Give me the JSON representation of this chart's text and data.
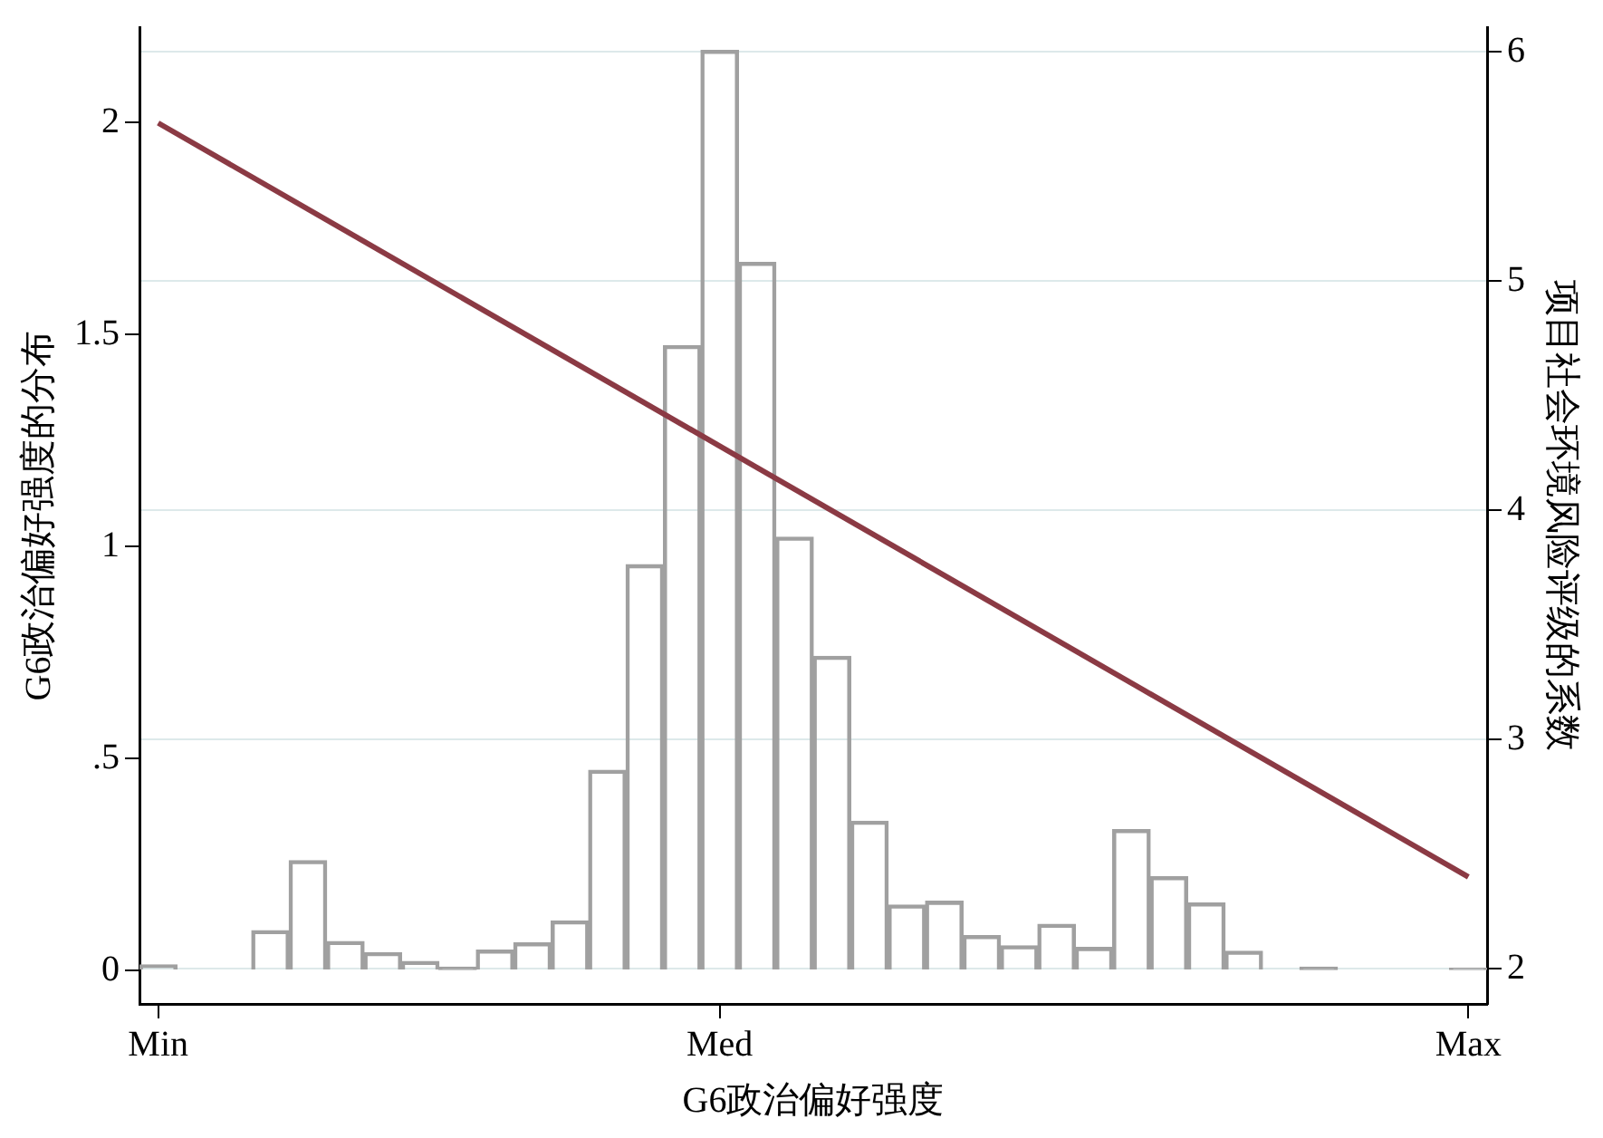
{
  "chart_data": {
    "type": "bar",
    "xlabel": "G6政治偏好强度",
    "ylabel": "G6政治偏好强度的分布",
    "y2label": "项目社会环境风险评级的系数",
    "categories": [
      "Min",
      null,
      null,
      null,
      null,
      null,
      null,
      null,
      null,
      null,
      null,
      null,
      null,
      null,
      null,
      "Med",
      null,
      null,
      null,
      null,
      null,
      null,
      null,
      null,
      null,
      null,
      null,
      null,
      null,
      null,
      null,
      null,
      null,
      null,
      null,
      "Max"
    ],
    "values": [
      0.013,
      null,
      null,
      0.094,
      0.259,
      0.068,
      0.042,
      0.021,
      0.008,
      0.048,
      0.065,
      0.117,
      0.472,
      0.957,
      1.474,
      2.17,
      1.67,
      1.022,
      0.741,
      0.352,
      0.154,
      0.163,
      0.082,
      0.058,
      0.109,
      0.054,
      0.332,
      0.221,
      0.159,
      0.045,
      null,
      0.008,
      null,
      null,
      null,
      0.005
    ],
    "color": "#a0a0a0",
    "series": [
      {
        "type": "line",
        "axis": "y2",
        "color": "#8b3a44",
        "x": [
          "Min",
          "Max"
        ],
        "values": [
          5.69,
          2.4
        ]
      }
    ],
    "ylim": [
      -0.079,
      2.225
    ],
    "yticks": [
      0,
      {
        "value": 0.5,
        "label": ".5"
      },
      1,
      1.5,
      2
    ],
    "y2lim": [
      1.846,
      6.108
    ],
    "y2ticks": [
      2,
      3,
      4,
      5,
      6
    ],
    "grid": "y2",
    "legend": false,
    "marker": "none",
    "line_style": "solid"
  }
}
